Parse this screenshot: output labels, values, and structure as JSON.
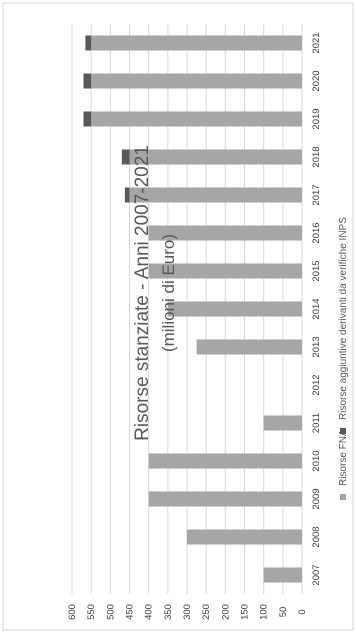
{
  "chart_data": {
    "type": "bar",
    "orientation": "rotated-stacked-bar",
    "title": "Risorse stanziate - Anni 2007-2021",
    "subtitle": "(milioni di Euro)",
    "categories": [
      "2007",
      "2008",
      "2009",
      "2010",
      "2011",
      "2012",
      "2013",
      "2014",
      "2015",
      "2016",
      "2017",
      "2018",
      "2019",
      "2020",
      "2021"
    ],
    "series": [
      {
        "name": "Risorse FNA",
        "color": "#a6a6a6",
        "values": [
          100,
          300,
          400,
          400,
          100,
          0,
          275,
          350,
          400,
          400,
          450,
          450,
          550,
          550,
          550
        ]
      },
      {
        "name": "Risorse aggiuntive derivanti da verifiche INPS",
        "color": "#595959",
        "values": [
          0,
          0,
          0,
          0,
          0,
          0,
          0,
          0,
          0,
          0,
          12,
          20,
          20,
          20,
          15
        ]
      }
    ],
    "ylim": [
      0,
      600
    ],
    "yticks": [
      0,
      50,
      100,
      150,
      200,
      250,
      300,
      350,
      400,
      450,
      500,
      550,
      600
    ],
    "grid": true,
    "legend_position": "bottom"
  }
}
